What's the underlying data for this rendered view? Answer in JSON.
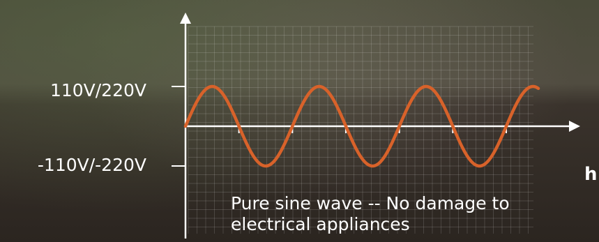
{
  "chart_data": {
    "type": "line",
    "title": "",
    "xlabel": "h",
    "ylabel": "",
    "y_tick_labels": [
      {
        "value": 1,
        "label": "110V/220V"
      },
      {
        "value": -1,
        "label": "-110V/-220V"
      }
    ],
    "x_range": [
      0,
      6.6
    ],
    "ylim": [
      -1.35,
      3.2
    ],
    "grid": true,
    "series": [
      {
        "curve": "sine",
        "amplitude": 1,
        "cycles_shown": 3.3,
        "start_phase": 0
      }
    ],
    "annotation_lines": [
      "Pure sine wave -- No damage to",
      "electrical appliances"
    ]
  },
  "colors": {
    "wave": "#d8622a",
    "axis": "#ffffff",
    "grid": "rgba(255,255,255,0.14)",
    "tick": "#ffffff",
    "text": "#ffffff"
  }
}
